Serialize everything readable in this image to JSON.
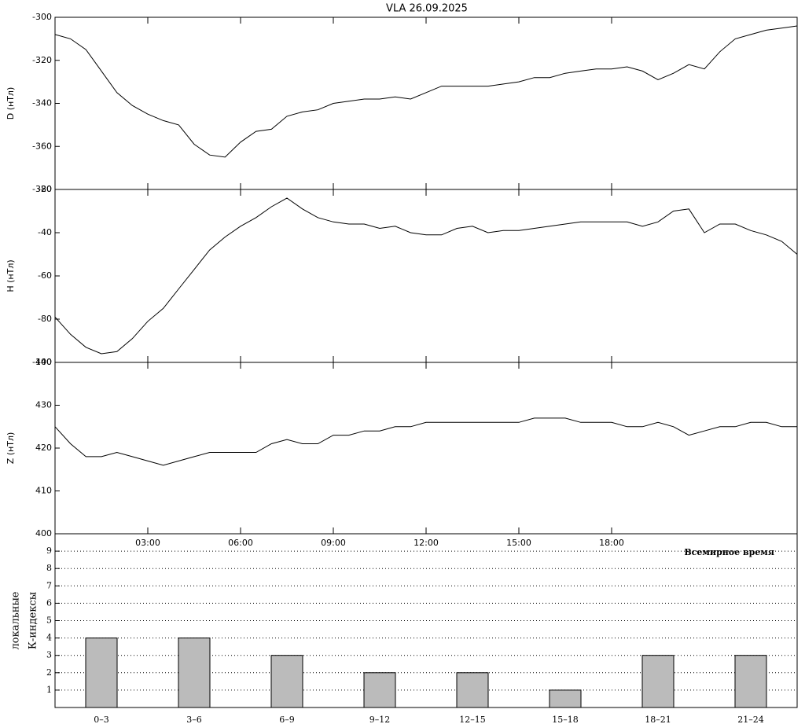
{
  "chart_data": [
    {
      "type": "line",
      "title": "VLA   26.09.2025",
      "ylabel": "D (нТл)",
      "x": [
        0,
        0.5,
        1,
        1.5,
        2,
        2.5,
        3,
        3.5,
        4,
        4.5,
        5,
        5.5,
        6,
        6.5,
        7,
        7.5,
        8,
        8.5,
        9,
        9.5,
        10,
        10.5,
        11,
        11.5,
        12,
        12.5,
        13,
        13.5,
        14,
        14.5,
        15,
        15.5,
        16,
        16.5,
        17,
        17.5,
        18,
        18.5,
        19,
        19.5,
        20,
        20.5,
        21,
        21.5,
        22,
        22.5,
        23,
        23.5,
        24
      ],
      "series": [
        {
          "color": "#000000",
          "values": [
            -308,
            -310,
            -315,
            -325,
            -335,
            -341,
            -345,
            -348,
            -350,
            -359,
            -364,
            -365,
            -358,
            -353,
            -352,
            -346,
            -344,
            -343,
            -340,
            -339,
            -338,
            -338,
            -337,
            -338,
            -335,
            -332,
            -332,
            -332,
            -332,
            -331,
            -330,
            -328,
            -328,
            -326,
            -325,
            -324,
            -324,
            -323,
            -325,
            -329,
            -326,
            -322,
            -324,
            -316,
            -310,
            -308,
            -306,
            -305,
            -304
          ]
        }
      ],
      "xlim": [
        0,
        24
      ],
      "ylim": [
        -380,
        -300
      ],
      "yticks": [
        -380,
        -360,
        -340,
        -320,
        -300
      ]
    },
    {
      "type": "line",
      "ylabel": "H (нТл)",
      "x": [
        0,
        0.5,
        1,
        1.5,
        2,
        2.5,
        3,
        3.5,
        4,
        4.5,
        5,
        5.5,
        6,
        6.5,
        7,
        7.5,
        8,
        8.5,
        9,
        9.5,
        10,
        10.5,
        11,
        11.5,
        12,
        12.5,
        13,
        13.5,
        14,
        14.5,
        15,
        15.5,
        16,
        16.5,
        17,
        17.5,
        18,
        18.5,
        19,
        19.5,
        20,
        20.5,
        21,
        21.5,
        22,
        22.5,
        23,
        23.5,
        24
      ],
      "series": [
        {
          "color": "#000000",
          "values": [
            -79,
            -87,
            -93,
            -96,
            -95,
            -89,
            -81,
            -75,
            -66,
            -57,
            -48,
            -42,
            -37,
            -33,
            -28,
            -24,
            -29,
            -33,
            -35,
            -36,
            -36,
            -38,
            -37,
            -40,
            -41,
            -41,
            -38,
            -37,
            -40,
            -39,
            -39,
            -38,
            -37,
            -36,
            -35,
            -35,
            -35,
            -35,
            -37,
            -35,
            -30,
            -29,
            -40,
            -36,
            -36,
            -39,
            -41,
            -44,
            -50
          ]
        }
      ],
      "xlim": [
        0,
        24
      ],
      "ylim": [
        -100,
        -20
      ],
      "yticks": [
        -100,
        -80,
        -60,
        -40,
        -20
      ]
    },
    {
      "type": "line",
      "ylabel": "Z (нТл)",
      "xlabel": "Всемирное время",
      "x": [
        0,
        0.5,
        1,
        1.5,
        2,
        2.5,
        3,
        3.5,
        4,
        4.5,
        5,
        5.5,
        6,
        6.5,
        7,
        7.5,
        8,
        8.5,
        9,
        9.5,
        10,
        10.5,
        11,
        11.5,
        12,
        12.5,
        13,
        13.5,
        14,
        14.5,
        15,
        15.5,
        16,
        16.5,
        17,
        17.5,
        18,
        18.5,
        19,
        19.5,
        20,
        20.5,
        21,
        21.5,
        22,
        22.5,
        23,
        23.5,
        24
      ],
      "series": [
        {
          "color": "#000000",
          "values": [
            425,
            421,
            418,
            418,
            419,
            418,
            417,
            416,
            417,
            418,
            419,
            419,
            419,
            419,
            421,
            422,
            421,
            421,
            423,
            423,
            424,
            424,
            425,
            425,
            426,
            426,
            426,
            426,
            426,
            426,
            426,
            427,
            427,
            427,
            426,
            426,
            426,
            425,
            425,
            426,
            425,
            423,
            424,
            425,
            425,
            426,
            426,
            425,
            425
          ]
        }
      ],
      "xlim": [
        0,
        24
      ],
      "ylim": [
        400,
        440
      ],
      "yticks": [
        400,
        410,
        420,
        430,
        440
      ],
      "xticks": [
        {
          "value": 3,
          "label": "03:00"
        },
        {
          "value": 6,
          "label": "06:00"
        },
        {
          "value": 9,
          "label": "09:00"
        },
        {
          "value": 12,
          "label": "12:00"
        },
        {
          "value": 15,
          "label": "15:00"
        },
        {
          "value": 18,
          "label": "18:00"
        }
      ]
    },
    {
      "type": "bar",
      "ylabel": [
        "локальные",
        "К-индексы"
      ],
      "categories": [
        "0–3",
        "3–6",
        "6–9",
        "9–12",
        "12–15",
        "15–18",
        "18–21",
        "21–24"
      ],
      "values": [
        4,
        4,
        3,
        2,
        2,
        1,
        3,
        3
      ],
      "color": "#bbbbbb",
      "ylim": [
        0,
        10
      ],
      "yticks": [
        1,
        2,
        3,
        4,
        5,
        6,
        7,
        8,
        9
      ],
      "grid": true
    }
  ]
}
